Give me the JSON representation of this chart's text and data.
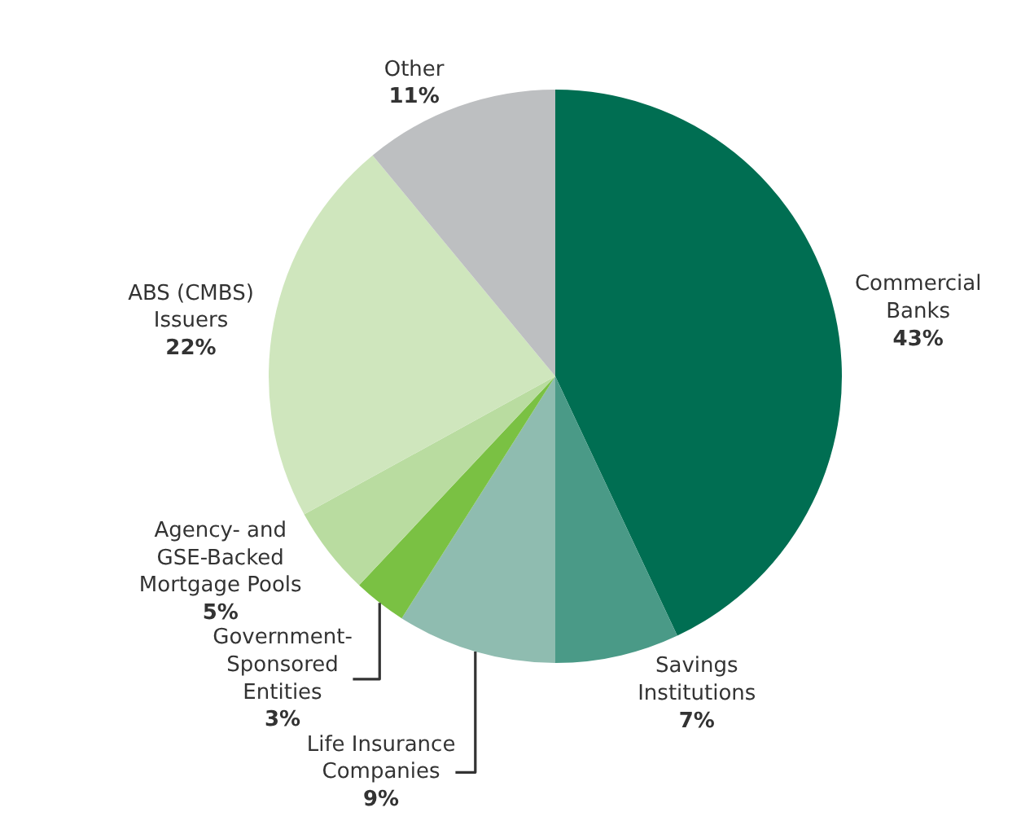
{
  "chart_data": {
    "type": "pie",
    "categories": [
      "Commercial Banks",
      "Savings Institutions",
      "Life Insurance Companies",
      "Government-Sponsored Entities",
      "Agency- and GSE-Backed Mortgage Pools",
      "ABS (CMBS) Issuers",
      "Other"
    ],
    "values": [
      43,
      7,
      9,
      3,
      5,
      22,
      11
    ],
    "value_labels": [
      "43%",
      "7%",
      "9%",
      "3%",
      "5%",
      "22%",
      "11%"
    ],
    "colors": [
      "#006e52",
      "#4a9a87",
      "#8fbcb0",
      "#7ac143",
      "#b9dca0",
      "#cfe6bd",
      "#bdbfc1"
    ],
    "legend": false
  }
}
